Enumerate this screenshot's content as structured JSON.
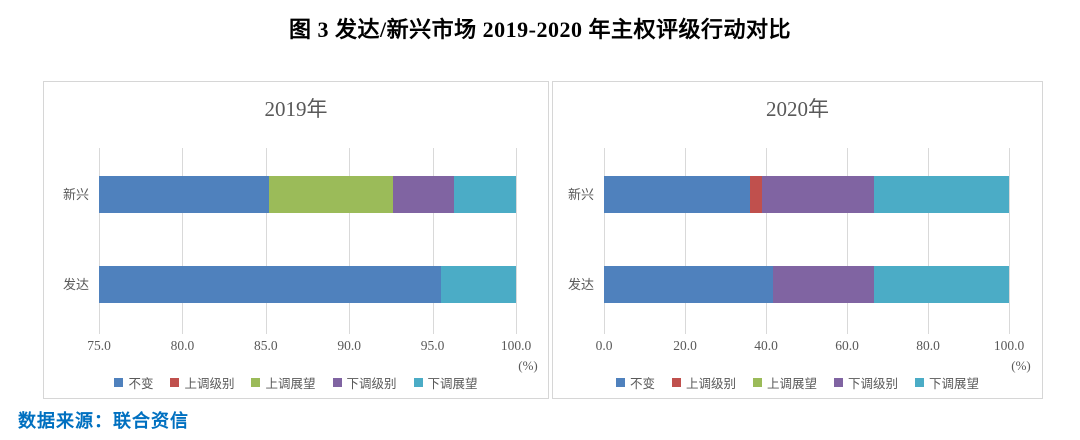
{
  "page": {
    "title": "图 3 发达/新兴市场 2019-2020 年主权评级行动对比",
    "source_note": "数据来源：联合资信"
  },
  "colors": {
    "unchanged": "#4F81BD",
    "upgrade_rating": "#C0504D",
    "upgrade_outlook": "#9BBB59",
    "downgrade_rating": "#8064A2",
    "downgrade_outlook": "#4BACC6",
    "grid": "#D9D9D9",
    "axis_text": "#595959",
    "source_text": "#0070C0"
  },
  "legend_labels": [
    "不变",
    "上调级别",
    "上调展望",
    "下调级别",
    "下调展望"
  ],
  "chart_data": [
    {
      "type": "bar",
      "orientation": "horizontal-stacked",
      "title": "2019年",
      "categories": [
        "新兴",
        "发达"
      ],
      "series": [
        {
          "name": "不变",
          "color": "#4F81BD",
          "values": [
            85.2,
            95.5
          ]
        },
        {
          "name": "上调级别",
          "color": "#C0504D",
          "values": [
            0,
            0
          ]
        },
        {
          "name": "上调展望",
          "color": "#9BBB59",
          "values": [
            7.4,
            0
          ]
        },
        {
          "name": "下调级别",
          "color": "#8064A2",
          "values": [
            3.7,
            0
          ]
        },
        {
          "name": "下调展望",
          "color": "#4BACC6",
          "values": [
            3.7,
            4.5
          ]
        }
      ],
      "xlim": [
        75,
        100
      ],
      "tick_labels": [
        "75.0",
        "80.0",
        "85.0",
        "90.0",
        "95.0",
        "100.0"
      ],
      "unit_label": "(%)",
      "grid": true,
      "legend_position": "bottom"
    },
    {
      "type": "bar",
      "orientation": "horizontal-stacked",
      "title": "2020年",
      "categories": [
        "新兴",
        "发达"
      ],
      "series": [
        {
          "name": "不变",
          "color": "#4F81BD",
          "values": [
            36.1,
            41.7
          ]
        },
        {
          "name": "上调级别",
          "color": "#C0504D",
          "values": [
            2.8,
            0
          ]
        },
        {
          "name": "上调展望",
          "color": "#9BBB59",
          "values": [
            0,
            0
          ]
        },
        {
          "name": "下调级别",
          "color": "#8064A2",
          "values": [
            27.8,
            25.0
          ]
        },
        {
          "name": "下调展望",
          "color": "#4BACC6",
          "values": [
            33.3,
            33.3
          ]
        }
      ],
      "xlim": [
        0,
        100
      ],
      "tick_labels": [
        "0.0",
        "20.0",
        "40.0",
        "60.0",
        "80.0",
        "100.0"
      ],
      "unit_label": "(%)",
      "grid": true,
      "legend_position": "bottom"
    }
  ]
}
